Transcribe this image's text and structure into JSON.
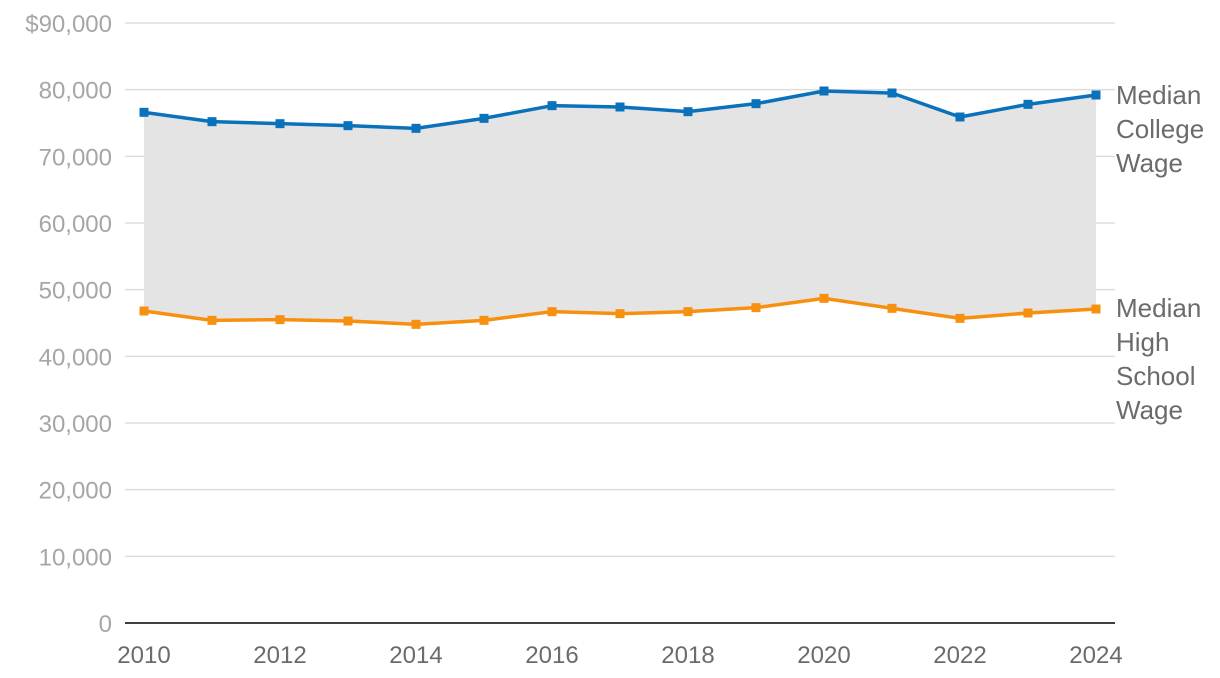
{
  "chart_data": {
    "type": "line",
    "title": "",
    "xlabel": "",
    "ylabel": "",
    "x": [
      2010,
      2011,
      2012,
      2013,
      2014,
      2015,
      2016,
      2017,
      2018,
      2019,
      2020,
      2021,
      2022,
      2023,
      2024
    ],
    "series": [
      {
        "name": "Median College Wage",
        "label_lines": [
          "Median",
          "College",
          "Wage"
        ],
        "color": "#0a72ba",
        "values": [
          76600,
          75200,
          74900,
          74600,
          74200,
          75700,
          77600,
          77400,
          76700,
          77900,
          79800,
          79500,
          75900,
          77800,
          79200
        ]
      },
      {
        "name": "Median High School Wage",
        "label_lines": [
          "Median",
          "High",
          "School",
          "Wage"
        ],
        "color": "#f7900f",
        "values": [
          46800,
          45400,
          45500,
          45300,
          44800,
          45400,
          46700,
          46400,
          46700,
          47300,
          48700,
          47200,
          45700,
          46500,
          47100
        ]
      }
    ],
    "shaded_gap": {
      "color": "#e4e4e4"
    },
    "ylim": [
      0,
      90000
    ],
    "yticks": [
      0,
      10000,
      20000,
      30000,
      40000,
      50000,
      60000,
      70000,
      80000,
      90000
    ],
    "ytick_labels": [
      "0",
      "10,000",
      "20,000",
      "30,000",
      "40,000",
      "50,000",
      "60,000",
      "70,000",
      "80,000",
      "$90,000"
    ],
    "xticks": [
      2010,
      2012,
      2014,
      2016,
      2018,
      2020,
      2022,
      2024
    ],
    "xtick_labels": [
      "2010",
      "2012",
      "2014",
      "2016",
      "2018",
      "2020",
      "2022",
      "2024"
    ],
    "grid": true,
    "legend": "direct-labels-right"
  }
}
